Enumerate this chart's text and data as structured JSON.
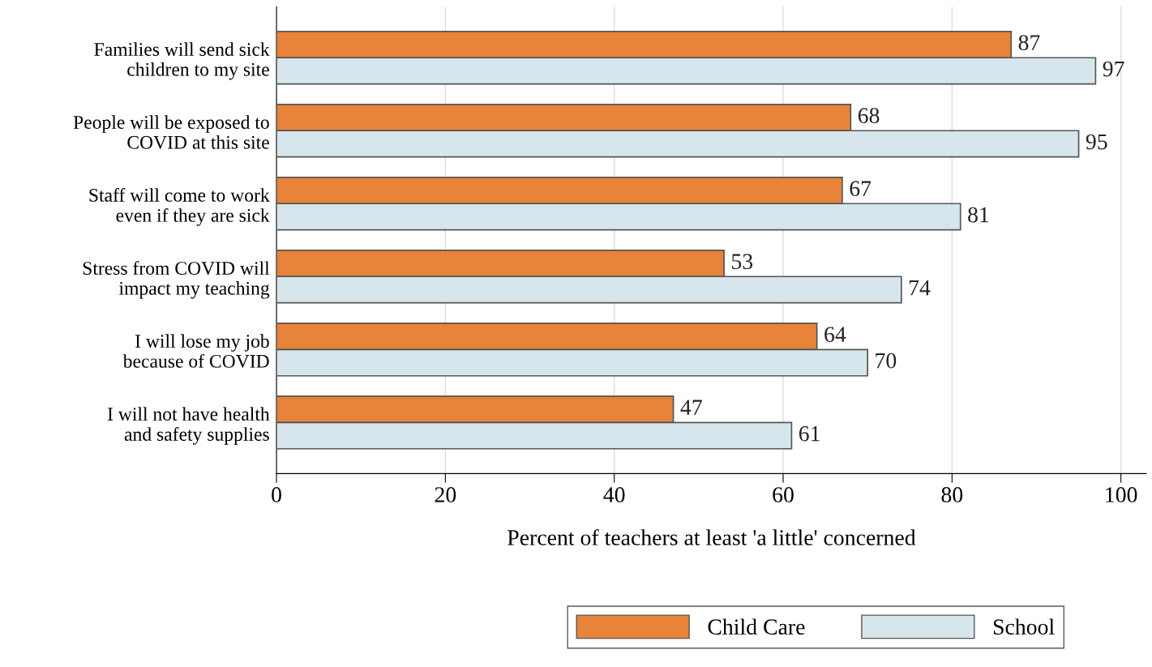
{
  "chart_data": {
    "type": "bar",
    "orientation": "horizontal",
    "xlabel": "Percent of teachers at least 'a little' concerned",
    "categories": [
      "Families will send sick\nchildren to my site",
      "People will be exposed to\nCOVID at this site",
      "Staff will come to work\neven if they are sick",
      "Stress from COVID will\nimpact my teaching",
      "I will lose my job\nbecause of COVID",
      "I will not have health\nand safety supplies"
    ],
    "series": [
      {
        "name": "Child Care",
        "color": "#e8833a",
        "values": [
          87,
          68,
          67,
          53,
          64,
          47
        ]
      },
      {
        "name": "School",
        "color": "#d6e6ec",
        "values": [
          97,
          95,
          81,
          74,
          70,
          61
        ]
      }
    ],
    "xlim": [
      0,
      103
    ],
    "xticks": [
      0,
      20,
      40,
      60,
      80,
      100
    ],
    "grid": "x",
    "legend": "bottom",
    "data_labels": true
  }
}
